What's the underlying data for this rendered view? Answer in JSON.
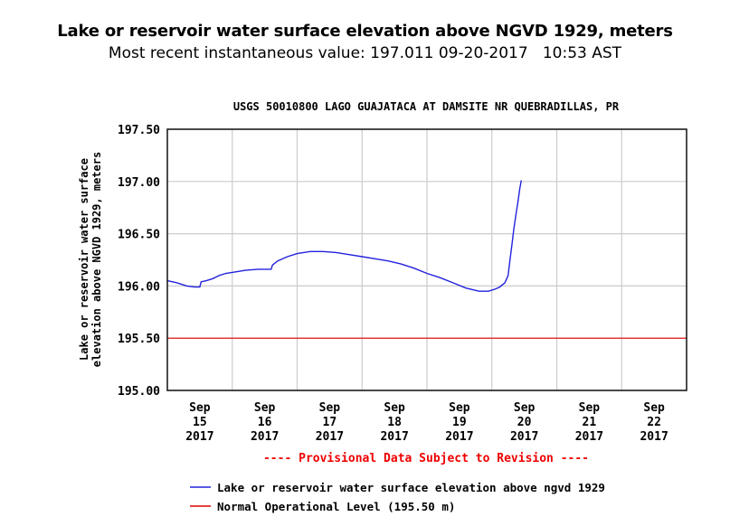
{
  "header": {
    "title": "Lake or reservoir water surface elevation above NGVD 1929, meters",
    "subtitle": "Most recent instantaneous value: 197.011 09-20-2017   10:53 AST"
  },
  "chart_data": {
    "type": "line",
    "title": "USGS 50010800 LAGO GUAJATACA AT DAMSITE NR QUEBRADILLAS, PR",
    "ylabel_line1": "Lake or reservoir water surface",
    "ylabel_line2": "elevation above NGVD 1929, meters",
    "ylim": [
      195.0,
      197.5
    ],
    "yticks": [
      "197.50",
      "197.00",
      "196.50",
      "196.00",
      "195.50",
      "195.00"
    ],
    "ytick_values": [
      197.5,
      197.0,
      196.5,
      196.0,
      195.5,
      195.0
    ],
    "xlim_days": [
      0,
      8
    ],
    "xticks": [
      {
        "month": "Sep",
        "day": "15",
        "year": "2017"
      },
      {
        "month": "Sep",
        "day": "16",
        "year": "2017"
      },
      {
        "month": "Sep",
        "day": "17",
        "year": "2017"
      },
      {
        "month": "Sep",
        "day": "18",
        "year": "2017"
      },
      {
        "month": "Sep",
        "day": "19",
        "year": "2017"
      },
      {
        "month": "Sep",
        "day": "20",
        "year": "2017"
      },
      {
        "month": "Sep",
        "day": "21",
        "year": "2017"
      },
      {
        "month": "Sep",
        "day": "22",
        "year": "2017"
      }
    ],
    "grid": true,
    "provisional_note": "---- Provisional Data Subject to Revision ----",
    "series": [
      {
        "name": "Lake or reservoir water surface elevation above ngvd 1929",
        "color": "#2222dd",
        "x_days": [
          0,
          0.15,
          0.3,
          0.42,
          0.5,
          0.52,
          0.6,
          0.7,
          0.8,
          0.9,
          1.0,
          1.2,
          1.4,
          1.6,
          1.62,
          1.7,
          1.85,
          2.0,
          2.2,
          2.4,
          2.6,
          2.8,
          3.0,
          3.2,
          3.4,
          3.6,
          3.8,
          4.0,
          4.2,
          4.4,
          4.6,
          4.8,
          4.95,
          5.05,
          5.12,
          5.2,
          5.25,
          5.28,
          5.31,
          5.34,
          5.37,
          5.4,
          5.43,
          5.453
        ],
        "values": [
          196.05,
          196.03,
          196.0,
          195.99,
          195.99,
          196.04,
          196.05,
          196.07,
          196.1,
          196.12,
          196.13,
          196.15,
          196.16,
          196.16,
          196.2,
          196.24,
          196.28,
          196.31,
          196.33,
          196.33,
          196.32,
          196.3,
          196.28,
          196.26,
          196.24,
          196.21,
          196.17,
          196.12,
          196.08,
          196.03,
          195.98,
          195.95,
          195.95,
          195.97,
          195.99,
          196.03,
          196.1,
          196.25,
          196.4,
          196.55,
          196.68,
          196.8,
          196.93,
          197.011
        ]
      },
      {
        "name": "Normal Operational Level (195.50 m)",
        "color": "#dd0000",
        "constant": 195.5
      }
    ],
    "legend": "bottom"
  }
}
